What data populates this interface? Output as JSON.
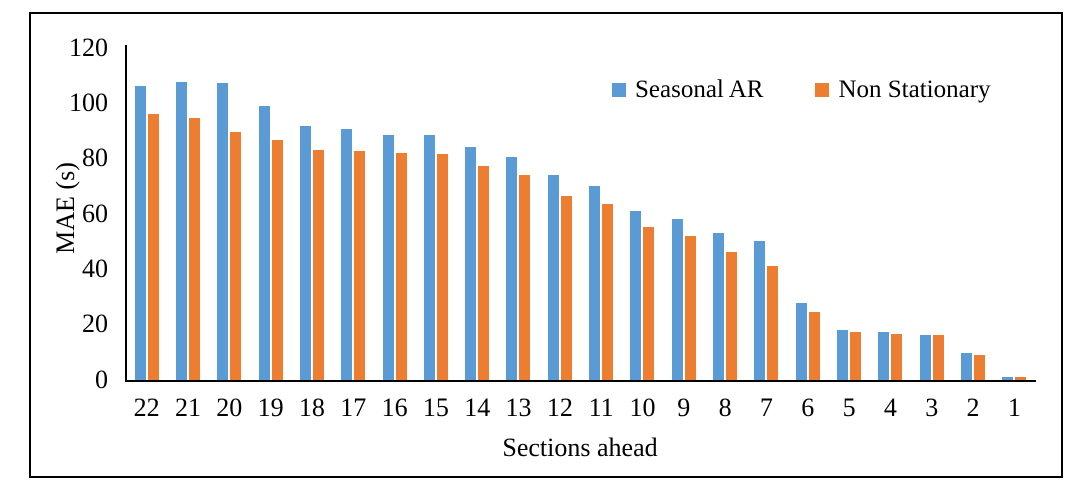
{
  "chart_data": {
    "type": "bar",
    "title": "",
    "xlabel": "Sections ahead",
    "ylabel": "MAE (s)",
    "categories": [
      "22",
      "21",
      "20",
      "19",
      "18",
      "17",
      "16",
      "15",
      "14",
      "13",
      "12",
      "11",
      "10",
      "9",
      "8",
      "7",
      "6",
      "5",
      "4",
      "3",
      "2",
      "1"
    ],
    "series": [
      {
        "name": "Seasonal AR",
        "color": "#5B9BD5",
        "values": [
          106,
          107.5,
          107,
          99,
          91.5,
          90.5,
          88.5,
          88.5,
          84,
          80.5,
          74,
          70,
          61,
          58,
          53,
          50,
          27.5,
          18,
          17,
          16,
          9.5,
          1
        ]
      },
      {
        "name": "Non Stationary",
        "color": "#ED7D31",
        "values": [
          96,
          94.5,
          89.5,
          86.5,
          83,
          82.5,
          82,
          81.5,
          77,
          74,
          66.5,
          63.5,
          55,
          52,
          46,
          41,
          24.5,
          17,
          16.5,
          16,
          9,
          1
        ]
      }
    ],
    "ylim": [
      0,
      120
    ],
    "yticks": [
      0,
      20,
      40,
      60,
      80,
      100,
      120
    ],
    "grid": false,
    "legend_position": "top-right-inside",
    "axis_color": "#000000",
    "frame_color": "#000000"
  }
}
